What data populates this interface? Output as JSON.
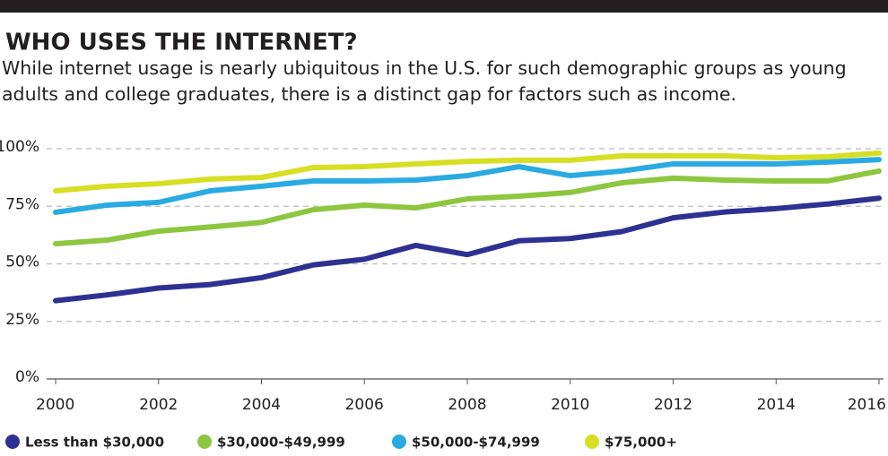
{
  "chart_data": {
    "type": "line",
    "title": "WHO USES THE INTERNET?",
    "subtitle": "While internet usage is nearly ubiquitous in the U.S. for such demographic groups as young adults and college graduates, there is a distinct gap for factors such as income.",
    "x": [
      2000,
      2001,
      2002,
      2003,
      2004,
      2005,
      2006,
      2007,
      2008,
      2009,
      2010,
      2011,
      2012,
      2013,
      2014,
      2015,
      2016
    ],
    "series": [
      {
        "name": "Less than $30,000",
        "color": "#2e3192",
        "values": [
          34,
          36.5,
          39.5,
          41,
          44,
          49.5,
          52,
          58,
          54,
          60,
          61,
          64,
          70,
          72.5,
          74,
          76,
          78.5
        ]
      },
      {
        "name": "$30,000-$49,999",
        "color": "#8dc63f",
        "values": [
          58.7,
          60.3,
          64.2,
          66,
          68,
          73.5,
          75.5,
          74.3,
          78.2,
          79.4,
          81,
          85.2,
          87.2,
          86.4,
          86,
          86,
          90.3
        ]
      },
      {
        "name": "$50,000-$74,999",
        "color": "#29abe2",
        "values": [
          72.4,
          75.5,
          76.7,
          81.7,
          83.7,
          86,
          86,
          86.4,
          88.3,
          92.2,
          88.3,
          90.3,
          93.4,
          93.4,
          93.4,
          94.2,
          95.3
        ]
      },
      {
        "name": "$75,000+",
        "color": "#d7df23",
        "values": [
          81.7,
          83.7,
          84.8,
          86.8,
          87.5,
          91.8,
          92.2,
          93.4,
          94.5,
          95,
          95,
          96.9,
          96.9,
          96.9,
          96.1,
          96.5,
          98.1
        ]
      }
    ],
    "xlim": [
      2000,
      2016
    ],
    "xticks": [
      2000,
      2002,
      2004,
      2006,
      2008,
      2010,
      2012,
      2014,
      2016
    ],
    "ylim": [
      0,
      100
    ],
    "yticks": [
      {
        "value": 0,
        "label": "0%"
      },
      {
        "value": 25,
        "label": "25%"
      },
      {
        "value": 50,
        "label": "50%"
      },
      {
        "value": 75,
        "label": "75%"
      },
      {
        "value": 100,
        "label": "100%"
      }
    ],
    "grid": true,
    "legend": "bottom"
  }
}
